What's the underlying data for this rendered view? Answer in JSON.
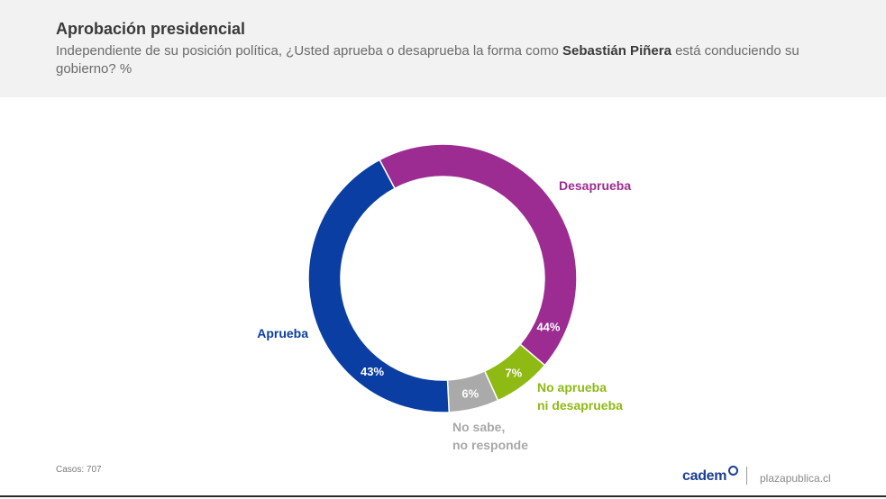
{
  "header": {
    "title": "Aprobación presidencial",
    "subtitle_pre": "Independiente de su posición política, ¿Usted aprueba o desaprueba la forma como ",
    "subtitle_bold": "Sebastián Piñera",
    "subtitle_post": " está conduciendo su gobierno? %"
  },
  "chart_data": {
    "type": "pie",
    "variant": "donut",
    "categories": [
      "Desaprueba",
      "No aprueba ni desaprueba",
      "No sabe, no responde",
      "Aprueba"
    ],
    "category_lines": [
      [
        "Desaprueba"
      ],
      [
        "No aprueba",
        "ni desaprueba"
      ],
      [
        "No sabe,",
        "no responde"
      ],
      [
        "Aprueba"
      ]
    ],
    "values": [
      44,
      7,
      6,
      43
    ],
    "value_labels": [
      "44%",
      "7%",
      "6%",
      "43%"
    ],
    "colors": [
      "#9c2c92",
      "#8fba14",
      "#aaaaaa",
      "#0a3ea3"
    ],
    "label_colors": [
      "#9c2c92",
      "#8fba14",
      "#a8a8a8",
      "#0a3ea3"
    ]
  },
  "footer": {
    "cases": "Casos: 707",
    "brand": "cadem",
    "site": "plazapublica.cl"
  }
}
